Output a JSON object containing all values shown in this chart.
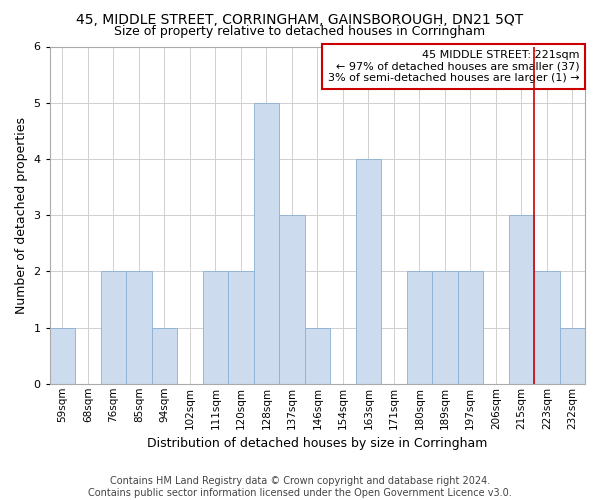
{
  "title_line1": "45, MIDDLE STREET, CORRINGHAM, GAINSBOROUGH, DN21 5QT",
  "title_line2": "Size of property relative to detached houses in Corringham",
  "xlabel": "Distribution of detached houses by size in Corringham",
  "ylabel": "Number of detached properties",
  "footer_line1": "Contains HM Land Registry data © Crown copyright and database right 2024.",
  "footer_line2": "Contains public sector information licensed under the Open Government Licence v3.0.",
  "categories": [
    "59sqm",
    "68sqm",
    "76sqm",
    "85sqm",
    "94sqm",
    "102sqm",
    "111sqm",
    "120sqm",
    "128sqm",
    "137sqm",
    "146sqm",
    "154sqm",
    "163sqm",
    "171sqm",
    "180sqm",
    "189sqm",
    "197sqm",
    "206sqm",
    "215sqm",
    "223sqm",
    "232sqm"
  ],
  "values": [
    1,
    0,
    2,
    2,
    1,
    0,
    2,
    2,
    5,
    3,
    1,
    0,
    4,
    0,
    2,
    2,
    2,
    0,
    3,
    2,
    1
  ],
  "bar_color": "#ccdcee",
  "bar_edge_color": "#8aafd4",
  "highlight_line_index": 19,
  "highlight_line_color": "#cc0000",
  "annotation_text": "45 MIDDLE STREET: 221sqm\n← 97% of detached houses are smaller (37)\n3% of semi-detached houses are larger (1) →",
  "annotation_box_edge_color": "#cc0000",
  "annotation_box_face_color": "#ffffff",
  "ylim": [
    0,
    6
  ],
  "yticks": [
    0,
    1,
    2,
    3,
    4,
    5,
    6
  ],
  "background_color": "#ffffff",
  "grid_color": "#d0d0d0",
  "title1_fontsize": 10,
  "title2_fontsize": 9,
  "ylabel_fontsize": 9,
  "xlabel_fontsize": 9,
  "tick_fontsize": 7.5,
  "annotation_fontsize": 8,
  "footer_fontsize": 7
}
